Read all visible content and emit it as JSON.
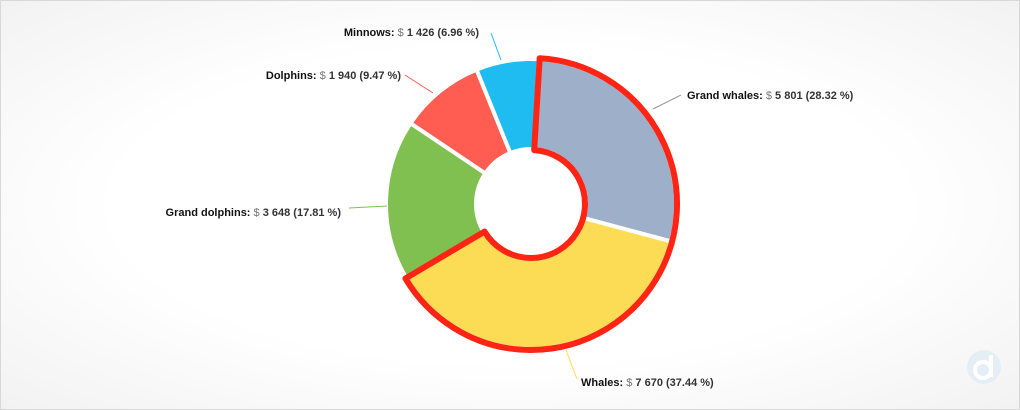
{
  "chart_data": {
    "type": "pie",
    "variant": "donut",
    "currency_symbol": "$",
    "slices": [
      {
        "name": "Grand whales",
        "value": 5801,
        "value_text": "5 801",
        "percent": 28.32,
        "percent_text": "(28.32 %)",
        "color": "#9dafc9",
        "highlighted": true
      },
      {
        "name": "Whales",
        "value": 7670,
        "value_text": "7 670",
        "percent": 37.44,
        "percent_text": "(37.44 %)",
        "color": "#fddc55",
        "highlighted": true
      },
      {
        "name": "Grand dolphins",
        "value": 3648,
        "value_text": "3 648",
        "percent": 17.81,
        "percent_text": "(17.81 %)",
        "color": "#80c050",
        "highlighted": false
      },
      {
        "name": "Dolphins",
        "value": 1940,
        "value_text": "1 940",
        "percent": 9.47,
        "percent_text": "(9.47 %)",
        "color": "#ff5c52",
        "highlighted": false
      },
      {
        "name": "Minnows",
        "value": 1426,
        "value_text": "1 426",
        "percent": 6.96,
        "percent_text": "(6.96 %)",
        "color": "#1fbcf2",
        "highlighted": false
      }
    ],
    "highlight_color": "#ff2414",
    "leader_line_color": "#888888"
  },
  "brand": {
    "logo_icon": "devtodev-logo-icon",
    "logo_color": "#e3ecf3"
  }
}
